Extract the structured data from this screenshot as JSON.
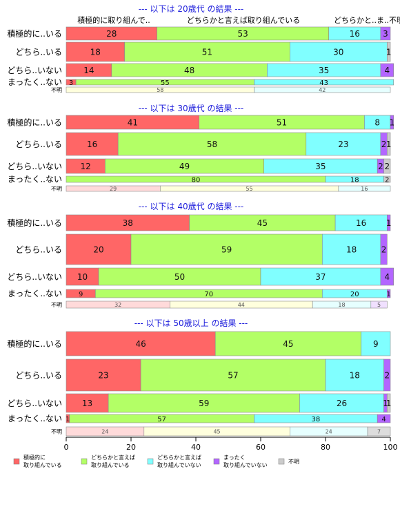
{
  "chart_data": {
    "type": "bar",
    "orientation": "horizontal",
    "stacked": "percent",
    "x_axis": {
      "range": [
        0,
        100
      ],
      "ticks": [
        0,
        20,
        40,
        60,
        80,
        100
      ]
    },
    "column_header_labels": [
      "積極的に取り組んで..",
      "どちらかと言えば取り組んでいる",
      "どちらかと..",
      "ま..",
      "不明"
    ],
    "legend": {
      "position": "bottom",
      "entries": [
        {
          "name": "積極的に\n取り組んでいる",
          "color": "#ff6666"
        },
        {
          "name": "どちらかと言えば\n取り組んでいる",
          "color": "#b3ff66"
        },
        {
          "name": "どちらかと言えば\n取り組んでいない",
          "color": "#80ffff"
        },
        {
          "name": "まったく\n取り組んでいない",
          "color": "#b366ff"
        },
        {
          "name": "不明",
          "color": "#cccccc"
        }
      ]
    },
    "panels": [
      {
        "title": "--- 以下は 20歳代 の結果 ---",
        "rows": [
          {
            "label": "積極的に..いる",
            "values": [
              28,
              53,
              16,
              3,
              0
            ]
          },
          {
            "label": "どちら..いる",
            "values": [
              18,
              51,
              30,
              0,
              1
            ]
          },
          {
            "label": "どちら..いない",
            "values": [
              14,
              48,
              35,
              4,
              0
            ]
          },
          {
            "label": "まったく..ない",
            "values": [
              3,
              55,
              43,
              0,
              0
            ]
          }
        ],
        "unknown_row": {
          "label": "不明",
          "values": [
            0,
            58,
            42,
            0,
            0
          ]
        }
      },
      {
        "title": "--- 以下は 30歳代 の結果 ---",
        "rows": [
          {
            "label": "積極的に..いる",
            "values": [
              41,
              51,
              8,
              1,
              0
            ]
          },
          {
            "label": "どちら..いる",
            "values": [
              16,
              58,
              23,
              2,
              1
            ]
          },
          {
            "label": "どちら..いない",
            "values": [
              12,
              49,
              35,
              2,
              2
            ]
          },
          {
            "label": "まったく..ない",
            "values": [
              0,
              80,
              18,
              0,
              2
            ]
          }
        ],
        "unknown_row": {
          "label": "不明",
          "values": [
            29,
            55,
            16,
            0,
            0
          ]
        }
      },
      {
        "title": "--- 以下は 40歳代 の結果 ---",
        "rows": [
          {
            "label": "積極的に..いる",
            "values": [
              38,
              45,
              16,
              1,
              0
            ]
          },
          {
            "label": "どちら..いる",
            "values": [
              20,
              59,
              18,
              2,
              0
            ]
          },
          {
            "label": "どちら..いない",
            "values": [
              10,
              50,
              37,
              4,
              0
            ]
          },
          {
            "label": "まったく..ない",
            "values": [
              9,
              70,
              20,
              1,
              0
            ]
          }
        ],
        "unknown_row": {
          "label": "不明",
          "values": [
            32,
            44,
            18,
            5,
            0
          ]
        }
      },
      {
        "title": "--- 以下は 50歳以上 の結果 ---",
        "rows": [
          {
            "label": "積極的に..いる",
            "values": [
              46,
              45,
              9,
              0,
              0
            ]
          },
          {
            "label": "どちら..いる",
            "values": [
              23,
              57,
              18,
              2,
              0
            ]
          },
          {
            "label": "どちら..いない",
            "values": [
              13,
              59,
              26,
              1,
              1
            ]
          },
          {
            "label": "まったく..ない",
            "values": [
              1,
              57,
              38,
              4,
              0
            ]
          }
        ],
        "unknown_row": {
          "label": "不明",
          "values": [
            24,
            45,
            24,
            0,
            7
          ]
        }
      }
    ]
  }
}
